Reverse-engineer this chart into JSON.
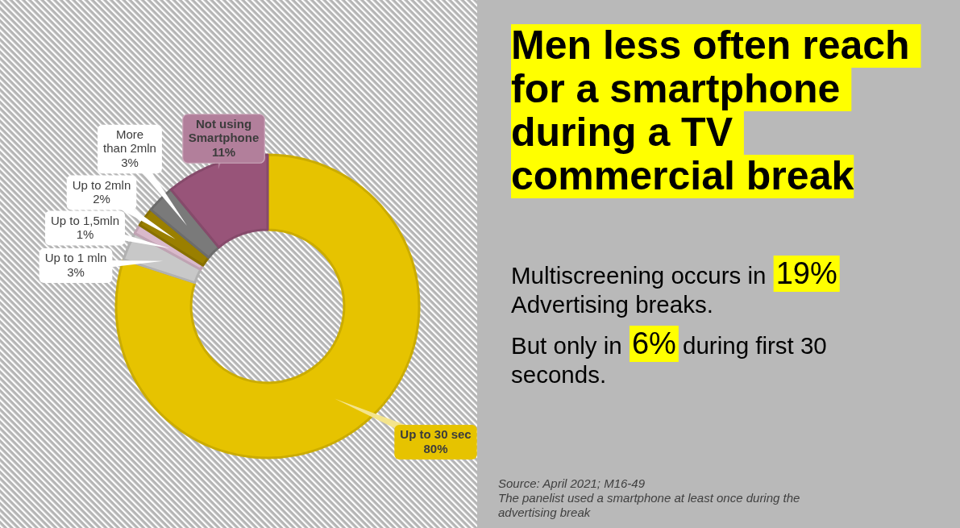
{
  "chart_data": {
    "type": "donut",
    "title": "Men less often reach for a smartphone during a TV commercial break",
    "categories": [
      "Up to 30 sec",
      "Up to 1 mln",
      "Up to 1,5mln",
      "Up to 2mln",
      "More than 2mln",
      "Not using Smartphone"
    ],
    "values": [
      80,
      3,
      1,
      2,
      3,
      11
    ],
    "colors": [
      "#e6c300",
      "#c8c8c8",
      "#d9b9cb",
      "#9a7f00",
      "#7a7a7a",
      "#985479"
    ],
    "value_labels": [
      "80%",
      "3%",
      "1%",
      "2%",
      "3%",
      "11%"
    ],
    "annotations": [
      "Multiscreening occurs in",
      "19%",
      "Advertising breaks.",
      "But only in",
      "6%",
      "during first 30",
      "seconds.",
      "Source: April 2021; M16-49",
      "The panelist used a smartphone at least once during the advertising break"
    ]
  }
}
